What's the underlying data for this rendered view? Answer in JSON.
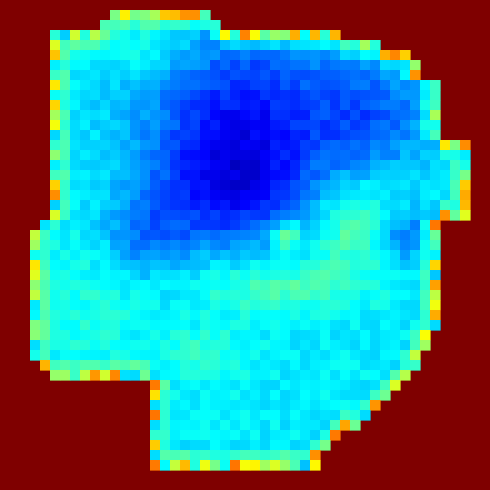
{
  "chart_data": {
    "type": "heatmap",
    "colormap": "jet",
    "value_range": [
      0,
      1
    ],
    "outside_value": 1.0,
    "outside_color": "#7f0000",
    "rows": 49,
    "cols": 49,
    "title": "",
    "xlabel": "",
    "ylabel": "",
    "grid": false,
    "legend": "none",
    "region_runs": [
      [],
      [
        [
          11,
          20
        ]
      ],
      [
        [
          10,
          21
        ]
      ],
      [
        [
          5,
          33
        ]
      ],
      [
        [
          5,
          37
        ]
      ],
      [
        [
          5,
          40
        ]
      ],
      [
        [
          5,
          41
        ]
      ],
      [
        [
          5,
          41
        ]
      ],
      [
        [
          5,
          43
        ]
      ],
      [
        [
          5,
          43
        ]
      ],
      [
        [
          5,
          43
        ]
      ],
      [
        [
          5,
          43
        ]
      ],
      [
        [
          5,
          43
        ]
      ],
      [
        [
          5,
          43
        ]
      ],
      [
        [
          5,
          46
        ]
      ],
      [
        [
          5,
          46
        ]
      ],
      [
        [
          5,
          46
        ]
      ],
      [
        [
          5,
          46
        ]
      ],
      [
        [
          5,
          46
        ]
      ],
      [
        [
          5,
          46
        ]
      ],
      [
        [
          5,
          46
        ]
      ],
      [
        [
          5,
          46
        ]
      ],
      [
        [
          4,
          43
        ]
      ],
      [
        [
          3,
          43
        ]
      ],
      [
        [
          3,
          43
        ]
      ],
      [
        [
          3,
          43
        ]
      ],
      [
        [
          3,
          43
        ]
      ],
      [
        [
          3,
          43
        ]
      ],
      [
        [
          3,
          43
        ]
      ],
      [
        [
          3,
          43
        ]
      ],
      [
        [
          3,
          43
        ]
      ],
      [
        [
          3,
          43
        ]
      ],
      [
        [
          3,
          43
        ]
      ],
      [
        [
          3,
          42
        ]
      ],
      [
        [
          3,
          42
        ]
      ],
      [
        [
          3,
          41
        ]
      ],
      [
        [
          4,
          41
        ]
      ],
      [
        [
          5,
          40
        ]
      ],
      [
        [
          15,
          39
        ]
      ],
      [
        [
          15,
          38
        ]
      ],
      [
        [
          15,
          37
        ]
      ],
      [
        [
          15,
          36
        ]
      ],
      [
        [
          15,
          35
        ]
      ],
      [
        [
          15,
          33
        ]
      ],
      [
        [
          15,
          32
        ]
      ],
      [
        [
          15,
          31
        ]
      ],
      [
        [
          15,
          31
        ]
      ],
      [],
      []
    ],
    "blobs": [
      {
        "name": "deep-basin-north",
        "cx": 24,
        "cy": 12,
        "sx": 7,
        "sy": 7,
        "amp": -0.22
      },
      {
        "name": "deep-basin-east",
        "cx": 37,
        "cy": 11,
        "sx": 4,
        "sy": 4,
        "amp": -0.12
      },
      {
        "name": "basin-center",
        "cx": 22,
        "cy": 19,
        "sx": 5,
        "sy": 4,
        "amp": -0.12
      },
      {
        "name": "basin-west",
        "cx": 14,
        "cy": 23,
        "sx": 3,
        "sy": 3,
        "amp": -0.1
      },
      {
        "name": "east-pocket",
        "cx": 40,
        "cy": 23,
        "sx": 2,
        "sy": 2,
        "amp": -0.12
      },
      {
        "name": "ridge-east",
        "cx": 35,
        "cy": 22,
        "sx": 3,
        "sy": 3,
        "amp": 0.12
      },
      {
        "name": "ridge-center",
        "cx": 27,
        "cy": 28,
        "sx": 6,
        "sy": 2,
        "amp": 0.1
      },
      {
        "name": "spot-small",
        "cx": 28,
        "cy": 23,
        "sx": 1,
        "sy": 1,
        "amp": 0.18
      },
      {
        "name": "south-lobe",
        "cx": 20,
        "cy": 35,
        "sx": 3,
        "sy": 2,
        "amp": 0.06
      },
      {
        "name": "west-shelf",
        "cx": 8,
        "cy": 30,
        "sx": 4,
        "sy": 6,
        "amp": 0.04
      },
      {
        "name": "north-strip",
        "cx": 14,
        "cy": 4,
        "sx": 4,
        "sy": 2,
        "amp": 0.06
      }
    ],
    "base_value": 0.36,
    "edge_value": 0.47,
    "edge_jitter": 0.45
  }
}
